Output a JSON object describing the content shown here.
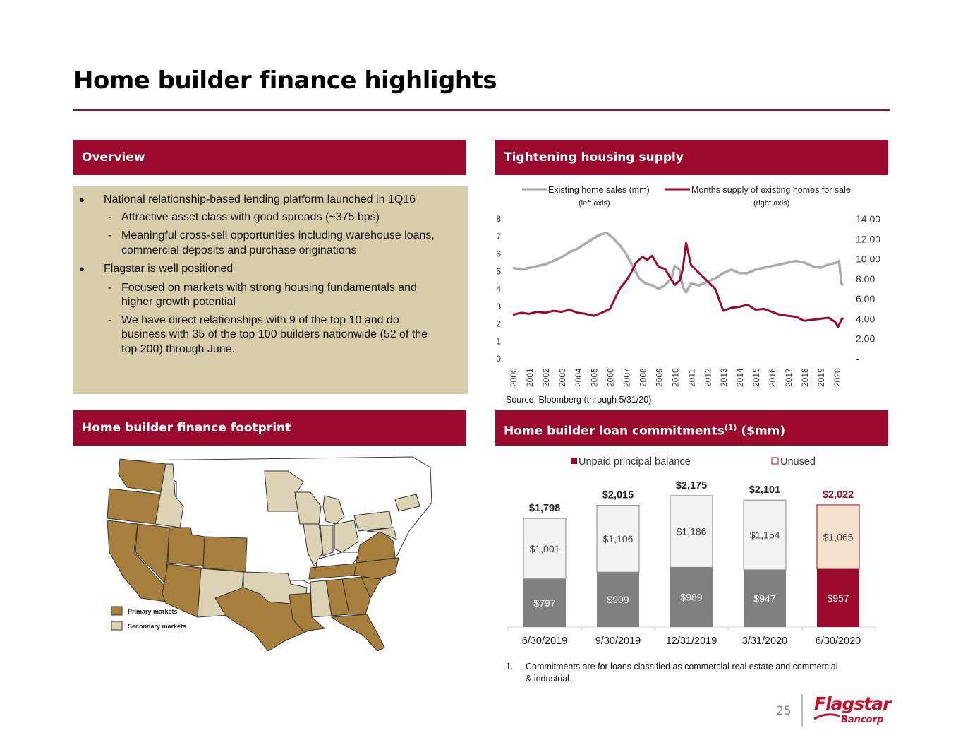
{
  "page": {
    "title": "Home builder finance highlights",
    "page_number": "25",
    "logo_main": "Flagstar",
    "logo_sub": "Bancorp",
    "accent_color": "#9b0a2e"
  },
  "sections": {
    "overview": "Overview",
    "supply": "Tightening housing supply",
    "footprint": "Home builder finance footprint",
    "commitments_pre": "Home builder loan commitments",
    "commitments_sup": "(1)",
    "commitments_post": " ($mm)"
  },
  "overview": {
    "bullets": [
      {
        "level": 1,
        "marker": "●",
        "text": "National relationship-based lending platform launched in 1Q16"
      },
      {
        "level": 2,
        "marker": "-",
        "text": "Attractive asset class with good spreads (~375 bps)"
      },
      {
        "level": 2,
        "marker": "-",
        "text": "Meaningful cross-sell opportunities including warehouse loans,"
      },
      {
        "level": 2,
        "marker": "",
        "text": "commercial deposits and purchase originations"
      },
      {
        "level": 1,
        "marker": "●",
        "text": "Flagstar is well positioned"
      },
      {
        "level": 2,
        "marker": "-",
        "text": "Focused on markets with strong housing fundamentals and"
      },
      {
        "level": 2,
        "marker": "",
        "text": "higher growth potential"
      },
      {
        "level": 2,
        "marker": "-",
        "text": "We have direct relationships with 9 of the top 10 and do"
      },
      {
        "level": 2,
        "marker": "",
        "text": "business with 35 of the top 100 builders nationwide (52 of the"
      },
      {
        "level": 2,
        "marker": "",
        "text": "top 200) through June."
      }
    ]
  },
  "map": {
    "legend_primary": "Primary markets",
    "legend_secondary": "Secondary markets",
    "primary_color": "#a77f3c",
    "secondary_color": "#dcd3b4"
  },
  "source_note": "Source: Bloomberg (through 5/31/20)",
  "footnote_number": "1.",
  "footnote_text_1": "Commitments are for loans classified as commercial real estate and commercial",
  "footnote_text_2": "& industrial.",
  "chart_data": [
    {
      "type": "line",
      "title": "Tightening housing supply",
      "x_labels": [
        "2000",
        "2001",
        "2002",
        "2003",
        "2004",
        "2005",
        "2006",
        "2007",
        "2008",
        "2009",
        "2010",
        "2011",
        "2012",
        "2013",
        "2014",
        "2015",
        "2016",
        "2017",
        "2018",
        "2019",
        "2020"
      ],
      "left_axis": {
        "ticks": [
          "0",
          "1",
          "2",
          "3",
          "4",
          "5",
          "6",
          "7",
          "8"
        ],
        "ylim": [
          0,
          8
        ]
      },
      "right_axis": {
        "ticks": [
          "-",
          "2.00",
          "4.00",
          "6.00",
          "8.00",
          "10.00",
          "12.00",
          "14.00"
        ],
        "ylim": [
          0,
          14
        ]
      },
      "series": [
        {
          "name": "Existing home sales (mm)",
          "axis_note": "(left axis)",
          "axis": "left",
          "color": "#aaaaaa",
          "x": [
            2000.0,
            2000.5,
            2001.0,
            2001.5,
            2002.0,
            2002.5,
            2003.0,
            2003.5,
            2004.0,
            2004.5,
            2005.0,
            2005.4,
            2005.8,
            2006.2,
            2006.6,
            2007.0,
            2007.4,
            2007.8,
            2008.2,
            2008.6,
            2009.0,
            2009.4,
            2009.8,
            2010.0,
            2010.3,
            2010.5,
            2010.7,
            2011.0,
            2011.5,
            2012.0,
            2012.5,
            2013.0,
            2013.5,
            2014.0,
            2014.5,
            2015.0,
            2015.5,
            2016.0,
            2016.5,
            2017.0,
            2017.5,
            2018.0,
            2018.5,
            2019.0,
            2019.5,
            2020.0,
            2020.15,
            2020.3,
            2020.4
          ],
          "y": [
            5.2,
            5.1,
            5.2,
            5.3,
            5.4,
            5.6,
            5.8,
            6.1,
            6.3,
            6.6,
            6.9,
            7.1,
            7.2,
            6.9,
            6.5,
            6.0,
            5.3,
            4.6,
            4.3,
            4.2,
            4.0,
            4.2,
            4.6,
            5.3,
            5.1,
            4.1,
            3.8,
            4.3,
            4.2,
            4.4,
            4.6,
            4.9,
            5.1,
            4.9,
            4.9,
            5.1,
            5.2,
            5.3,
            5.4,
            5.5,
            5.6,
            5.5,
            5.3,
            5.2,
            5.4,
            5.5,
            5.6,
            4.3,
            4.2
          ]
        },
        {
          "name": "Months supply of existing homes for sale",
          "axis_note": "(right axis)",
          "axis": "right",
          "color": "#9b0a2e",
          "x": [
            2000.0,
            2000.5,
            2001.0,
            2001.5,
            2002.0,
            2002.5,
            2003.0,
            2003.5,
            2004.0,
            2004.5,
            2005.0,
            2005.5,
            2006.0,
            2006.3,
            2006.6,
            2007.0,
            2007.3,
            2007.6,
            2008.0,
            2008.3,
            2008.6,
            2009.0,
            2009.4,
            2009.8,
            2010.0,
            2010.3,
            2010.5,
            2010.7,
            2011.0,
            2011.5,
            2012.0,
            2012.5,
            2013.0,
            2013.5,
            2014.0,
            2014.5,
            2015.0,
            2015.5,
            2016.0,
            2016.5,
            2017.0,
            2017.5,
            2018.0,
            2018.5,
            2019.0,
            2019.5,
            2019.9,
            2020.1,
            2020.3,
            2020.4
          ],
          "y": [
            4.4,
            4.6,
            4.5,
            4.7,
            4.6,
            4.8,
            4.7,
            4.9,
            4.6,
            4.5,
            4.3,
            4.6,
            5.0,
            6.0,
            7.0,
            7.8,
            8.6,
            9.6,
            10.2,
            9.9,
            10.3,
            9.2,
            9.0,
            7.9,
            7.4,
            7.8,
            9.0,
            11.6,
            9.4,
            8.6,
            7.8,
            7.0,
            4.8,
            5.1,
            5.2,
            5.4,
            4.9,
            5.0,
            4.7,
            4.4,
            4.3,
            4.2,
            3.8,
            3.9,
            4.0,
            4.1,
            3.7,
            3.2,
            3.9,
            4.1
          ]
        }
      ]
    },
    {
      "type": "bar",
      "stacked": true,
      "title": "Home builder loan commitments(1) ($mm)",
      "categories": [
        "6/30/2019",
        "9/30/2019",
        "12/31/2019",
        "3/31/2020",
        "6/30/2020"
      ],
      "series": [
        {
          "name": "Unpaid principal balance",
          "values": [
            797,
            909,
            989,
            947,
            957
          ],
          "labels": [
            "$797",
            "$909",
            "$989",
            "$947",
            "$957"
          ],
          "colors": [
            "#808080",
            "#808080",
            "#808080",
            "#808080",
            "#9b0a2e"
          ]
        },
        {
          "name": "Unused",
          "values": [
            1001,
            1106,
            1186,
            1154,
            1065
          ],
          "labels": [
            "$1,001",
            "$1,106",
            "$1,186",
            "$1,154",
            "$1,065"
          ],
          "colors": [
            "#f2f2f2",
            "#f2f2f2",
            "#f2f2f2",
            "#f2f2f2",
            "#f5e0cc"
          ]
        }
      ],
      "totals": [
        1798,
        2015,
        2175,
        2101,
        2022
      ],
      "total_labels": [
        "$1,798",
        "$2,015",
        "$2,175",
        "$2,101",
        "$2,022"
      ],
      "total_colors": [
        "#222222",
        "#222222",
        "#222222",
        "#222222",
        "#9b0a2e"
      ],
      "ylim": [
        0,
        2400
      ]
    }
  ]
}
